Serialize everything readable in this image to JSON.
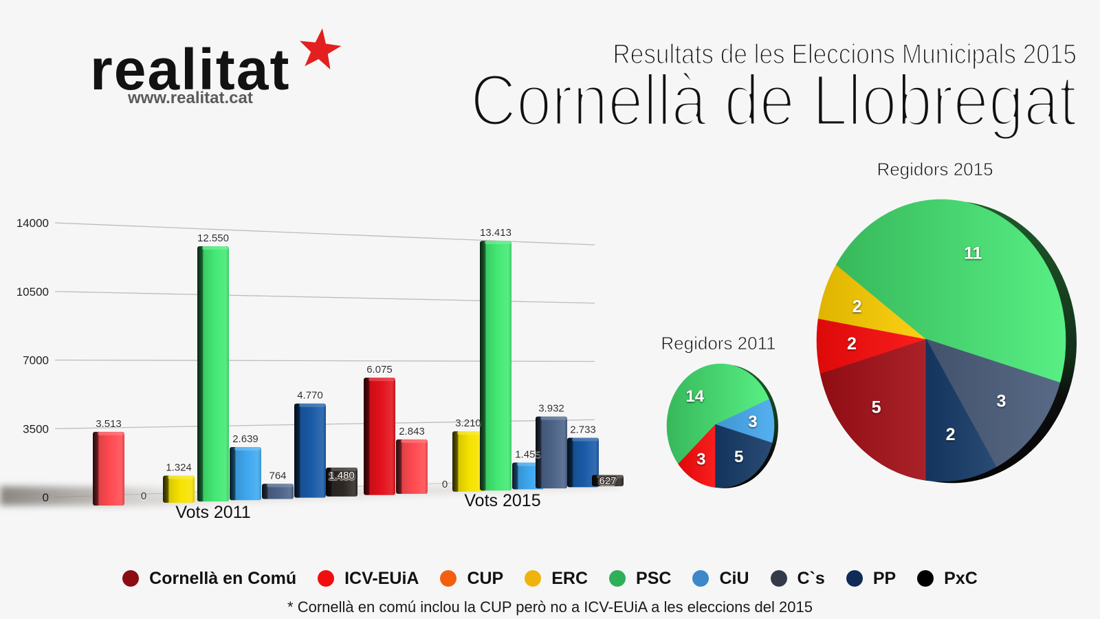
{
  "logo": {
    "wordmark": "realitat",
    "url": "www.realitat.cat",
    "star_color": "#e3201f"
  },
  "header": {
    "subtitle": "Resultats de les Eleccions Municipals 2015",
    "title": "Cornellà de Llobregat"
  },
  "parties": [
    {
      "id": "cec",
      "name": "Cornellà en Comú",
      "color": "#8c0c13",
      "bar_color": "#e3111b",
      "pie_color": "#a30f16"
    },
    {
      "id": "icv",
      "name": "ICV-EUiA",
      "color": "#f20e0e",
      "bar_color": "#ff4a50",
      "pie_color": "#fb0a0a"
    },
    {
      "id": "cup",
      "name": "CUP",
      "color": "#f2600f",
      "bar_color": "#f2600f",
      "pie_color": "#f2600f"
    },
    {
      "id": "erc",
      "name": "ERC",
      "color": "#f0b20c",
      "bar_color": "#f6e300",
      "pie_color": "#fccd00"
    },
    {
      "id": "psc",
      "name": "PSC",
      "color": "#2eaf58",
      "bar_color": "#42e873",
      "pie_color": "#45d46e"
    },
    {
      "id": "ciu",
      "name": "CiU",
      "color": "#3c88c9",
      "bar_color": "#3ea8ef",
      "pie_color": "#47a9ee"
    },
    {
      "id": "cs",
      "name": "C`s",
      "color": "#333a48",
      "bar_color": "#4c6388",
      "pie_color": "#4b5d7b"
    },
    {
      "id": "pp",
      "name": "PP",
      "color": "#0f2c56",
      "bar_color": "#1a5aa6",
      "pie_color": "#163b68"
    },
    {
      "id": "pxc",
      "name": "PxC",
      "color": "#000000",
      "bar_color": "#2e2824",
      "pie_color": "#111111"
    }
  ],
  "legend": {
    "placement": "bottom"
  },
  "footnote": "* Cornellà en comú inclou la CUP però no a ICV-EUiA a les eleccions del 2015",
  "chart_data": [
    {
      "type": "bar",
      "title": "",
      "xlabel": "",
      "ylabel": "",
      "categories": [
        "Vots 2011",
        "Vots 2015"
      ],
      "ylim": [
        0,
        14000
      ],
      "yticks": [
        0,
        3500,
        7000,
        10500,
        14000
      ],
      "grid": true,
      "series": [
        {
          "party": "cec",
          "name": "Cornellà en Comú",
          "values": [
            null,
            6075
          ],
          "labels": [
            null,
            "6.075"
          ]
        },
        {
          "party": "icv",
          "name": "ICV-EUiA",
          "values": [
            3513,
            2843
          ],
          "labels": [
            "3.513",
            "2.843"
          ]
        },
        {
          "party": "cup",
          "name": "CUP",
          "values": [
            0,
            0
          ],
          "labels": [
            "0",
            "0"
          ]
        },
        {
          "party": "erc",
          "name": "ERC",
          "values": [
            1324,
            3210
          ],
          "labels": [
            "1.324",
            "3.210"
          ]
        },
        {
          "party": "psc",
          "name": "PSC",
          "values": [
            12550,
            13413
          ],
          "labels": [
            "12.550",
            "13.413"
          ]
        },
        {
          "party": "ciu",
          "name": "CiU",
          "values": [
            2639,
            1455
          ],
          "labels": [
            "2.639",
            "1.455"
          ]
        },
        {
          "party": "cs",
          "name": "C`s",
          "values": [
            764,
            3932
          ],
          "labels": [
            "764",
            "3.932"
          ]
        },
        {
          "party": "pp",
          "name": "PP",
          "values": [
            4770,
            2733
          ],
          "labels": [
            "4.770",
            "2.733"
          ]
        },
        {
          "party": "pxc",
          "name": "PxC",
          "values": [
            1480,
            627
          ],
          "labels": [
            "1.480",
            "627"
          ]
        }
      ]
    },
    {
      "type": "pie",
      "title": "Regidors 2011",
      "slices": [
        {
          "party": "ciu",
          "name": "CiU",
          "value": 3,
          "label": "3"
        },
        {
          "party": "pp",
          "name": "PP",
          "value": 5,
          "label": "5"
        },
        {
          "party": "icv",
          "name": "ICV-EUiA",
          "value": 3,
          "label": "3"
        },
        {
          "party": "psc",
          "name": "PSC",
          "value": 14,
          "label": "14"
        }
      ]
    },
    {
      "type": "pie",
      "title": "Regidors 2015",
      "slices": [
        {
          "party": "cec",
          "name": "Cornellà en Comú",
          "value": 5,
          "label": "5"
        },
        {
          "party": "icv",
          "name": "ICV-EUiA",
          "value": 2,
          "label": "2"
        },
        {
          "party": "erc",
          "name": "ERC",
          "value": 2,
          "label": "2"
        },
        {
          "party": "psc",
          "name": "PSC",
          "value": 11,
          "label": "11"
        },
        {
          "party": "cs",
          "name": "C`s",
          "value": 3,
          "label": "3"
        },
        {
          "party": "pp",
          "name": "PP",
          "value": 2,
          "label": "2"
        }
      ]
    }
  ]
}
